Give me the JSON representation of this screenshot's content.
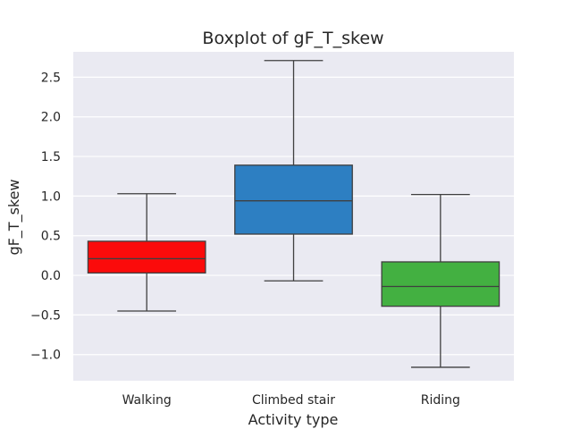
{
  "chart_data": {
    "type": "box",
    "title": "Boxplot of gF_T_skew",
    "xlabel": "Activity type",
    "ylabel": "gF_T_skew",
    "ylim": [
      -1.33,
      2.82
    ],
    "yticks": [
      -1.0,
      -0.5,
      0.0,
      0.5,
      1.0,
      1.5,
      2.0,
      2.5
    ],
    "ytick_labels": [
      "−1.0",
      "−0.5",
      "0.0",
      "0.5",
      "1.0",
      "1.5",
      "2.0",
      "2.5"
    ],
    "grid": true,
    "categories": [
      "Walking",
      "Climbed stair",
      "Riding"
    ],
    "boxes": [
      {
        "category": "Walking",
        "whisker_low": -0.45,
        "q1": 0.03,
        "median": 0.21,
        "q3": 0.43,
        "whisker_high": 1.03,
        "color": "#fb0b0b"
      },
      {
        "category": "Climbed stair",
        "whisker_low": -0.07,
        "q1": 0.52,
        "median": 0.94,
        "q3": 1.39,
        "whisker_high": 2.71,
        "color": "#2d7fc2"
      },
      {
        "category": "Riding",
        "whisker_low": -1.16,
        "q1": -0.39,
        "median": -0.14,
        "q3": 0.17,
        "whisker_high": 1.02,
        "color": "#43b041"
      }
    ],
    "colors": {
      "background": "#eaeaf2",
      "grid": "#ffffff",
      "line": "#3f3f3f"
    }
  }
}
